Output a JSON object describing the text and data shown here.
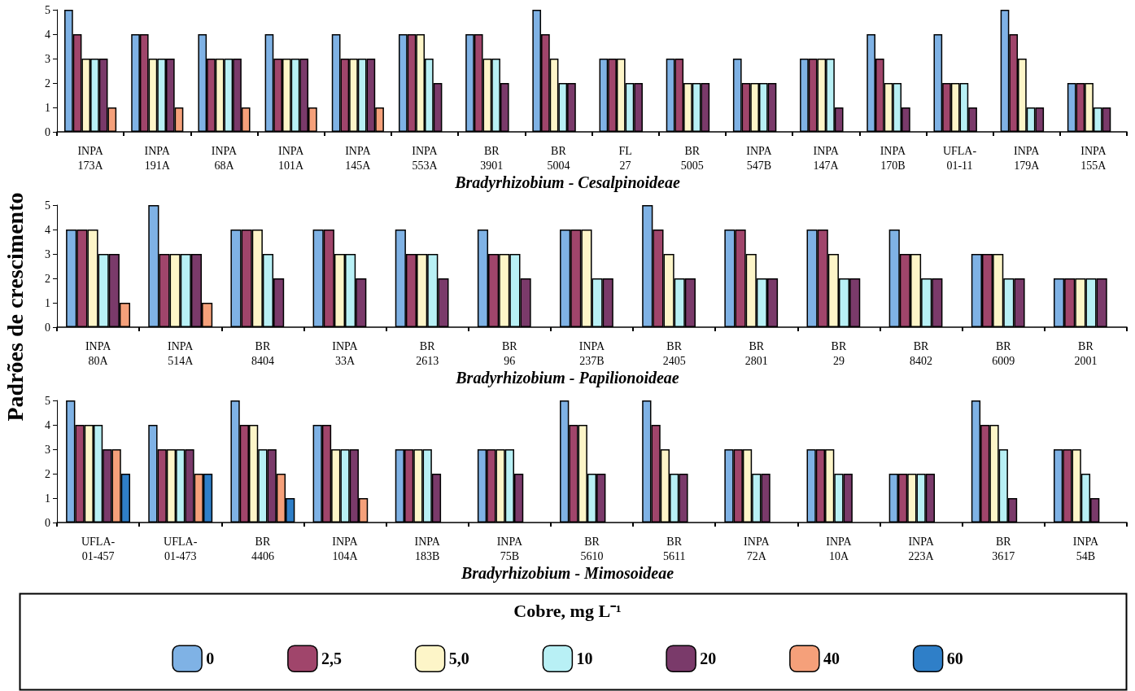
{
  "chart_data": [
    {
      "type": "bar",
      "title": "Bradyrhizobium - Cesalpinoideae",
      "categories": [
        "INPA\n173A",
        "INPA\n191A",
        "INPA\n68A",
        "INPA\n101A",
        "INPA\n145A",
        "INPA\n553A",
        "BR\n3901",
        "BR\n5004",
        "FL\n27",
        "BR\n5005",
        "INPA\n547B",
        "INPA\n147A",
        "INPA\n170B",
        "UFLA-\n01-11",
        "INPA\n179A",
        "INPA\n155A"
      ],
      "series": [
        {
          "color": "#7fb2e5",
          "values": [
            5,
            4,
            4,
            4,
            4,
            4,
            4,
            5,
            3,
            3,
            3,
            3,
            4,
            4,
            5,
            2
          ]
        },
        {
          "color": "#a0456b",
          "values": [
            4,
            4,
            3,
            3,
            3,
            4,
            4,
            4,
            3,
            3,
            2,
            3,
            3,
            2,
            4,
            2
          ]
        },
        {
          "color": "#fdf5c8",
          "values": [
            3,
            3,
            3,
            3,
            3,
            4,
            3,
            3,
            3,
            2,
            2,
            3,
            2,
            2,
            3,
            2
          ]
        },
        {
          "color": "#b8f0f5",
          "values": [
            3,
            3,
            3,
            3,
            3,
            3,
            3,
            2,
            2,
            2,
            2,
            3,
            2,
            2,
            1,
            1
          ]
        },
        {
          "color": "#7a3a6a",
          "values": [
            3,
            3,
            3,
            3,
            3,
            2,
            2,
            2,
            2,
            2,
            2,
            1,
            1,
            1,
            1,
            1
          ]
        },
        {
          "color": "#f5a07a",
          "values": [
            1,
            1,
            1,
            1,
            1,
            null,
            null,
            null,
            null,
            null,
            null,
            null,
            null,
            null,
            null,
            null
          ]
        }
      ],
      "ylim": [
        0,
        5
      ],
      "yticks": [
        0,
        1,
        2,
        3,
        4,
        5
      ],
      "grid": false,
      "legend": false
    },
    {
      "type": "bar",
      "title": "Bradyrhizobium - Papilionoideae",
      "ylabel": "Padrões de crescimento",
      "categories": [
        "INPA\n80A",
        "INPA\n514A",
        "BR\n8404",
        "INPA\n33A",
        "BR\n2613",
        "BR\n96",
        "INPA\n237B",
        "BR\n2405",
        "BR\n2801",
        "BR\n29",
        "BR\n8402",
        "BR\n6009",
        "BR\n2001"
      ],
      "series": [
        {
          "color": "#7fb2e5",
          "values": [
            4,
            5,
            4,
            4,
            4,
            4,
            4,
            5,
            4,
            4,
            4,
            3,
            2
          ]
        },
        {
          "color": "#a0456b",
          "values": [
            4,
            3,
            4,
            4,
            3,
            3,
            4,
            4,
            4,
            4,
            3,
            3,
            2
          ]
        },
        {
          "color": "#fdf5c8",
          "values": [
            4,
            3,
            4,
            3,
            3,
            3,
            4,
            3,
            3,
            3,
            3,
            3,
            2
          ]
        },
        {
          "color": "#b8f0f5",
          "values": [
            3,
            3,
            3,
            3,
            3,
            3,
            2,
            2,
            2,
            2,
            2,
            2,
            2
          ]
        },
        {
          "color": "#7a3a6a",
          "values": [
            3,
            3,
            2,
            2,
            2,
            2,
            2,
            2,
            2,
            2,
            2,
            2,
            2
          ]
        },
        {
          "color": "#f5a07a",
          "values": [
            1,
            1,
            null,
            null,
            null,
            null,
            null,
            null,
            null,
            null,
            null,
            null,
            null
          ]
        }
      ],
      "ylim": [
        0,
        5
      ],
      "yticks": [
        0,
        1,
        2,
        3,
        4,
        5
      ],
      "grid": false,
      "legend": false
    },
    {
      "type": "bar",
      "title": "Bradyrhizobium - Mimosoideae",
      "legend_title": "Cobre, mg L⁻¹",
      "categories": [
        "UFLA-\n01-457",
        "UFLA-\n01-473",
        "BR\n4406",
        "INPA\n104A",
        "INPA\n183B",
        "INPA\n75B",
        "BR\n5610",
        "BR\n5611",
        "INPA\n72A",
        "INPA\n10A",
        "INPA\n223A",
        "BR\n3617",
        "INPA\n54B"
      ],
      "series": [
        {
          "name": "0",
          "color": "#7fb2e5",
          "values": [
            5,
            4,
            5,
            4,
            3,
            3,
            5,
            5,
            3,
            3,
            2,
            5,
            3
          ]
        },
        {
          "name": "2,5",
          "color": "#a0456b",
          "values": [
            4,
            3,
            4,
            4,
            3,
            3,
            4,
            4,
            3,
            3,
            2,
            4,
            3
          ]
        },
        {
          "name": "5,0",
          "color": "#fdf5c8",
          "values": [
            4,
            3,
            4,
            3,
            3,
            3,
            4,
            3,
            3,
            3,
            2,
            4,
            3
          ]
        },
        {
          "name": "10",
          "color": "#b8f0f5",
          "values": [
            4,
            3,
            3,
            3,
            3,
            3,
            2,
            2,
            2,
            2,
            2,
            3,
            2
          ]
        },
        {
          "name": "20",
          "color": "#7a3a6a",
          "values": [
            3,
            3,
            3,
            3,
            2,
            2,
            2,
            2,
            2,
            2,
            2,
            1,
            1
          ]
        },
        {
          "name": "40",
          "color": "#f5a07a",
          "values": [
            3,
            2,
            2,
            1,
            null,
            null,
            null,
            null,
            null,
            null,
            null,
            null,
            null
          ]
        },
        {
          "name": "60",
          "color": "#2f7fc8",
          "values": [
            2,
            2,
            1,
            null,
            null,
            null,
            null,
            null,
            null,
            null,
            null,
            null,
            null
          ]
        }
      ],
      "ylim": [
        0,
        5
      ],
      "yticks": [
        0,
        1,
        2,
        3,
        4,
        5
      ],
      "grid": false,
      "legend": "bottom"
    }
  ]
}
